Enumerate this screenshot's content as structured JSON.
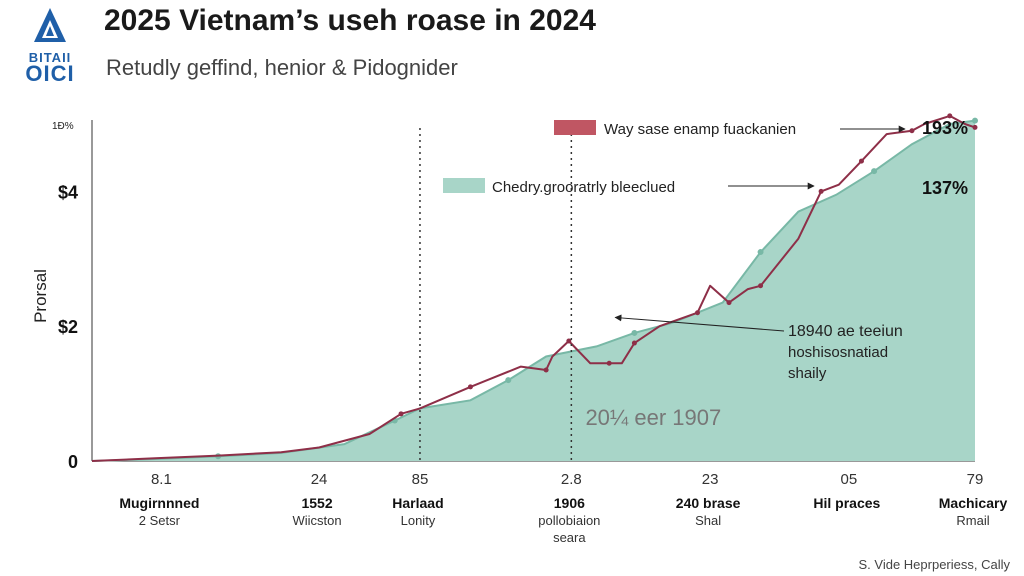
{
  "header": {
    "title": "2025 Vietnam’s useh roase in 2024",
    "subtitle": "Retudly geffind, henior & Pidognider",
    "logo_line1": "BITAII",
    "logo_line2": "OICI"
  },
  "footer": {
    "credit": "S. Vide Heprperiess, Cally"
  },
  "colors": {
    "area": "#a8d5c8",
    "area_line": "#78b8a6",
    "line": "#8e2f48",
    "legend_red": "#c05663"
  },
  "chart_data": {
    "type": "area",
    "ylabel": "Prorsal",
    "y_corner_label": "1Ð%",
    "ylim": [
      0,
      5
    ],
    "xlim": [
      0,
      7
    ],
    "y_ticks": [
      {
        "v": 0,
        "label": "0"
      },
      {
        "v": 2,
        "label": "$2"
      },
      {
        "v": 4,
        "label": "$4"
      }
    ],
    "x_ticks": [
      {
        "x": 0.55,
        "top": "8.1",
        "name": "Mugirnnned",
        "sub": "2 Setsr"
      },
      {
        "x": 1.8,
        "top": "24",
        "name": "1552",
        "sub": "Wiicston"
      },
      {
        "x": 2.6,
        "top": "85",
        "name": "Harlaad",
        "sub": "Lonity"
      },
      {
        "x": 3.8,
        "top": "2.8",
        "name": "1906",
        "sub": "pollobiaion\nseara"
      },
      {
        "x": 4.9,
        "top": "23",
        "name": "240 brase",
        "sub": "Shal"
      },
      {
        "x": 6.0,
        "top": "05",
        "name": "Hil praces",
        "sub": ""
      },
      {
        "x": 7.0,
        "top": "79",
        "name": "Machicary",
        "sub": "Rmail"
      }
    ],
    "vlines": [
      2.6,
      3.8
    ],
    "series": [
      {
        "name": "Chedry.grooratrly bleeclued",
        "type": "area",
        "x": [
          0,
          0.5,
          1.0,
          1.5,
          2.0,
          2.4,
          2.6,
          3.0,
          3.3,
          3.6,
          4.0,
          4.3,
          4.6,
          5.0,
          5.3,
          5.6,
          5.9,
          6.2,
          6.5,
          6.8,
          7.0
        ],
        "y": [
          0,
          0.03,
          0.07,
          0.12,
          0.25,
          0.6,
          0.78,
          0.9,
          1.2,
          1.55,
          1.7,
          1.9,
          2.05,
          2.35,
          3.1,
          3.7,
          3.95,
          4.3,
          4.7,
          5.0,
          5.05
        ]
      },
      {
        "name": "Way sase enamp fuackanien",
        "type": "line",
        "x": [
          0,
          0.5,
          1.0,
          1.5,
          1.8,
          2.2,
          2.45,
          2.6,
          3.0,
          3.4,
          3.6,
          3.65,
          3.78,
          3.95,
          4.1,
          4.2,
          4.3,
          4.5,
          4.8,
          4.9,
          5.05,
          5.2,
          5.3,
          5.6,
          5.78,
          5.92,
          6.1,
          6.3,
          6.5,
          6.6,
          6.8,
          6.92,
          7.0
        ],
        "y": [
          0,
          0.04,
          0.08,
          0.13,
          0.2,
          0.4,
          0.7,
          0.78,
          1.1,
          1.4,
          1.35,
          1.55,
          1.78,
          1.45,
          1.45,
          1.45,
          1.75,
          2.0,
          2.2,
          2.6,
          2.35,
          2.55,
          2.6,
          3.3,
          4.0,
          4.1,
          4.45,
          4.85,
          4.9,
          5.0,
          5.12,
          5.0,
          4.95
        ]
      }
    ],
    "legend": [
      {
        "label": "Way sase enamp fuackanien",
        "color": "#c05663",
        "value": "193%"
      },
      {
        "label": "Chedry.grooratrly bleeclued",
        "color": "#a8d5c8",
        "value": "137%"
      }
    ],
    "annotations": [
      {
        "text": "18940 ae teeiun\nhoshisosnatiad\nshaily",
        "target": [
          4.1,
          2.13
        ]
      },
      {
        "text": "20¼ eer 1907",
        "at": [
          4.45,
          1.35
        ]
      }
    ]
  }
}
